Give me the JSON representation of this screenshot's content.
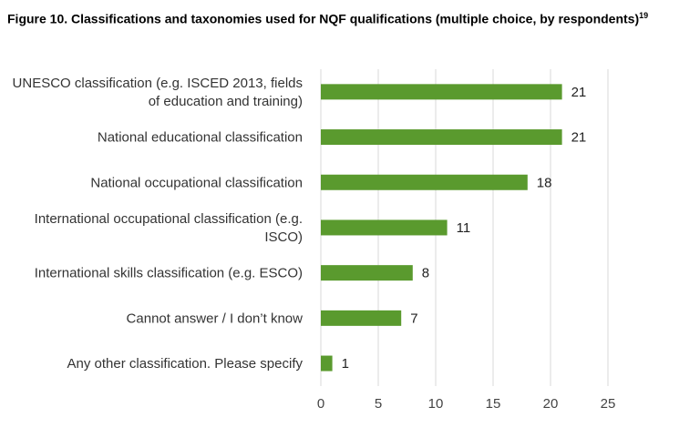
{
  "chart_data": {
    "type": "bar",
    "orientation": "horizontal",
    "title": "Figure 10. Classifications and taxonomies used for NQF qualifications (multiple choice, by respondents)",
    "title_footnote": "19",
    "categories": [
      [
        "UNESCO classification (e.g. ISCED 2013, fields",
        "of education and training)"
      ],
      [
        "National educational classification"
      ],
      [
        "National occupational classification"
      ],
      [
        "International occupational classification (e.g.",
        "ISCO)"
      ],
      [
        "International skills classification (e.g. ESCO)"
      ],
      [
        "Cannot answer / I don’t know"
      ],
      [
        "Any other classification. Please specify"
      ]
    ],
    "values": [
      21,
      21,
      18,
      11,
      8,
      7,
      1
    ],
    "xlim": [
      0,
      25
    ],
    "xticks": [
      0,
      5,
      10,
      15,
      20,
      25
    ],
    "grid": "vertical",
    "bar_color": "#5a9a2e",
    "grid_color": "#d9d9d9"
  }
}
